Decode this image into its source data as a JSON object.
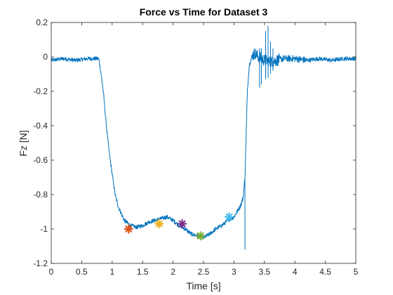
{
  "chart_data": {
    "type": "line",
    "title": "Force vs Time for Dataset 3",
    "xlabel": "Time [s]",
    "ylabel": "Fz [N]",
    "xlim": [
      0,
      5
    ],
    "ylim": [
      -1.2,
      0.2
    ],
    "xticks": [
      0,
      0.5,
      1,
      1.5,
      2,
      2.5,
      3,
      3.5,
      4,
      4.5,
      5
    ],
    "xtick_labels": [
      "0",
      "0.5",
      "1",
      "1.5",
      "2",
      "2.5",
      "3",
      "3.5",
      "4",
      "4.5",
      "5"
    ],
    "yticks": [
      0.2,
      0,
      -0.2,
      -0.4,
      -0.6,
      -0.8,
      -1,
      -1.2
    ],
    "ytick_labels": [
      "0.2",
      "0",
      "-0.2",
      "-0.4",
      "-0.6",
      "-0.8",
      "-1",
      "-1.2"
    ],
    "grid": false,
    "colors": {
      "line": "#0072BD"
    },
    "series": [
      {
        "style": "line",
        "color": "#0072BD",
        "x": [
          0,
          0.2,
          0.4,
          0.6,
          0.78,
          0.82,
          0.86,
          0.9,
          0.95,
          1.0,
          1.05,
          1.1,
          1.15,
          1.2,
          1.3,
          1.4,
          1.5,
          1.6,
          1.7,
          1.8,
          1.9,
          2.0,
          2.1,
          2.2,
          2.3,
          2.4,
          2.5,
          2.6,
          2.7,
          2.8,
          2.9,
          3.0,
          3.05,
          3.1,
          3.15,
          3.18,
          3.2,
          3.22,
          3.25,
          3.3,
          3.35,
          3.4,
          3.5,
          3.6,
          3.7,
          3.8,
          4.0,
          4.2,
          4.4,
          4.6,
          4.8,
          5.0
        ],
        "y": [
          -0.02,
          -0.01,
          -0.02,
          -0.01,
          -0.01,
          -0.1,
          -0.22,
          -0.38,
          -0.55,
          -0.68,
          -0.8,
          -0.87,
          -0.91,
          -0.95,
          -0.98,
          -0.99,
          -0.98,
          -0.96,
          -0.95,
          -0.94,
          -0.93,
          -0.95,
          -0.98,
          -1.0,
          -1.03,
          -1.04,
          -1.05,
          -1.03,
          -1.0,
          -0.98,
          -0.95,
          -0.93,
          -0.9,
          -0.87,
          -0.82,
          -0.7,
          -0.45,
          -0.2,
          -0.05,
          0.01,
          0.02,
          0.0,
          -0.02,
          -0.03,
          -0.02,
          -0.01,
          -0.01,
          -0.02,
          -0.01,
          -0.02,
          -0.01,
          -0.01
        ],
        "spikes": [
          {
            "x": 3.18,
            "ymin": -1.12,
            "ymax": -0.7
          },
          {
            "x": 3.52,
            "ymin": -0.1,
            "ymax": 0.15
          },
          {
            "x": 3.56,
            "ymin": -0.12,
            "ymax": 0.18
          },
          {
            "x": 3.6,
            "ymin": -0.1,
            "ymax": 0.09
          },
          {
            "x": 3.42,
            "ymin": -0.18,
            "ymax": 0.05
          },
          {
            "x": 3.45,
            "ymin": -0.16,
            "ymax": 0.05
          },
          {
            "x": 3.64,
            "ymin": -0.08,
            "ymax": 0.05
          },
          {
            "x": 3.52,
            "ymin": -0.13,
            "ymax": 0.06
          }
        ]
      },
      {
        "style": "marker",
        "marker": "*",
        "color": "#D95319",
        "x": [
          1.27
        ],
        "y": [
          -1.0
        ]
      },
      {
        "style": "marker",
        "marker": "*",
        "color": "#EDB120",
        "x": [
          1.77
        ],
        "y": [
          -0.97
        ]
      },
      {
        "style": "marker",
        "marker": "*",
        "color": "#7E2F8E",
        "x": [
          2.15
        ],
        "y": [
          -0.97
        ]
      },
      {
        "style": "marker",
        "marker": "*",
        "color": "#77AC30",
        "x": [
          2.45
        ],
        "y": [
          -1.04
        ]
      },
      {
        "style": "marker",
        "marker": "*",
        "color": "#4DBEEE",
        "x": [
          2.92
        ],
        "y": [
          -0.93
        ]
      }
    ]
  }
}
